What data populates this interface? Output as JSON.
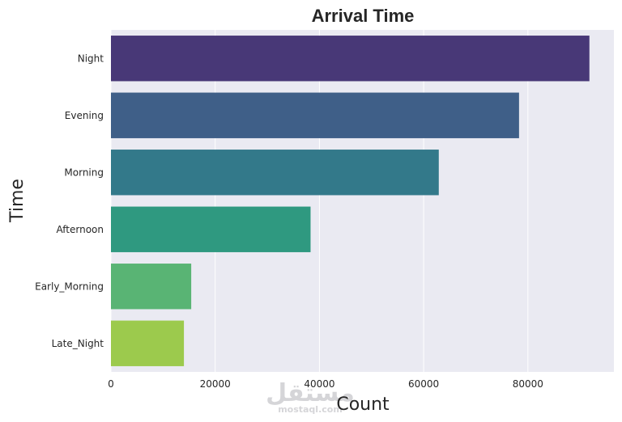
{
  "chart_data": {
    "type": "bar",
    "orientation": "horizontal",
    "title": "Arrival Time",
    "xlabel": "Count",
    "ylabel": "Time",
    "categories": [
      "Night",
      "Evening",
      "Morning",
      "Afternoon",
      "Early_Morning",
      "Late_Night"
    ],
    "values": [
      91800,
      78300,
      62900,
      38300,
      15400,
      14000
    ],
    "xlim": [
      0,
      96500
    ],
    "xticks": [
      0,
      20000,
      40000,
      60000,
      80000
    ],
    "grid": true,
    "colors": [
      "#483877",
      "#3f5f88",
      "#33798a",
      "#2f9980",
      "#59b474",
      "#9cca4d"
    ],
    "background": "#eaeaf2"
  },
  "watermark": {
    "brand": "مستقل",
    "url": "mostaql.com"
  }
}
